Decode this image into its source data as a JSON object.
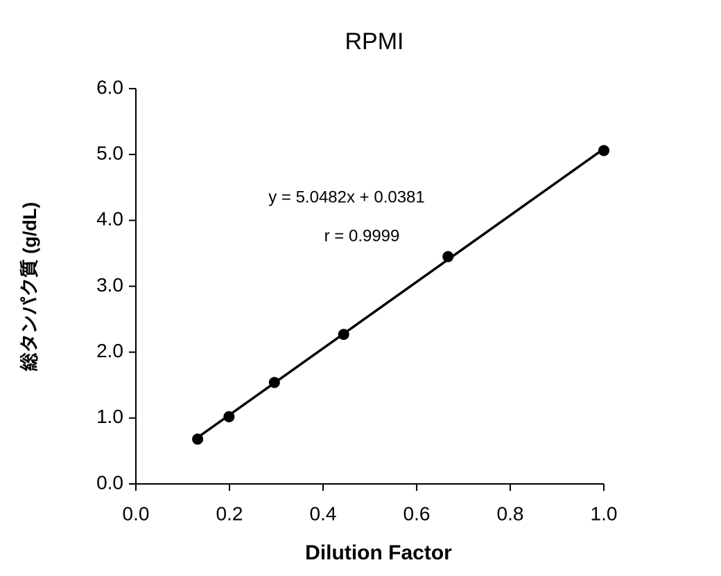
{
  "chart_data": {
    "type": "scatter",
    "title": "RPMI",
    "x_label": "Dilution Factor",
    "y_label": "総タンパク質 (g/dL)",
    "x": [
      0.132,
      0.199,
      0.296,
      0.444,
      0.667,
      1.0
    ],
    "series": [
      {
        "color": "#000000",
        "values": [
          0.68,
          1.02,
          1.54,
          2.27,
          3.45,
          5.06
        ]
      }
    ],
    "trendline": {
      "slope": 5.0482,
      "intercept": 0.0381,
      "color": "#000000"
    },
    "annotations": [
      "y = 5.0482x + 0.0381",
      "r = 0.9999"
    ],
    "xlim": [
      0,
      1
    ],
    "ylim": [
      0,
      6
    ],
    "xticks": [
      {
        "value": 0,
        "label": "0.0"
      },
      0.2,
      0.4,
      0.6,
      0.8,
      {
        "value": 1,
        "label": "1.0"
      }
    ],
    "yticks": [
      {
        "value": 0,
        "label": "0.0"
      },
      {
        "value": 1,
        "label": "1.0"
      },
      {
        "value": 2,
        "label": "2.0"
      },
      {
        "value": 3,
        "label": "3.0"
      },
      {
        "value": 4,
        "label": "4.0"
      },
      {
        "value": 5,
        "label": "5.0"
      },
      {
        "value": 6,
        "label": "6.0"
      }
    ],
    "grid": false
  }
}
